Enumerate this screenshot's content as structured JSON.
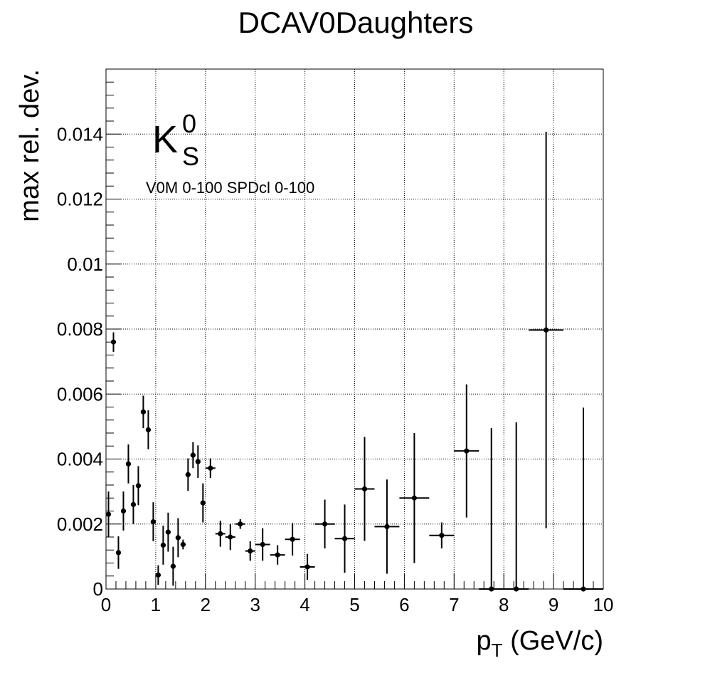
{
  "chart_data": {
    "type": "scatter",
    "title": "DCAV0Daughters",
    "xlabel_main": "p",
    "xlabel_sub": "T",
    "xlabel_unit": " (GeV/c)",
    "ylabel": "max rel. dev.",
    "particle_main": "K",
    "particle_sup": "0",
    "particle_sub": "S",
    "annotation": "V0M 0-100 SPDcl 0-100",
    "xlim": [
      0,
      10
    ],
    "ylim": [
      0,
      0.016
    ],
    "x_ticks": [
      0,
      1,
      2,
      3,
      4,
      5,
      6,
      7,
      8,
      9,
      10
    ],
    "x_tick_labels": [
      "0",
      "1",
      "2",
      "3",
      "4",
      "5",
      "6",
      "7",
      "8",
      "9",
      "10"
    ],
    "y_ticks": [
      0,
      0.002,
      0.004,
      0.006,
      0.008,
      0.01,
      0.012,
      0.014
    ],
    "y_tick_labels": [
      "0",
      "0.002",
      "0.004",
      "0.006",
      "0.008",
      "0.01",
      "0.012",
      "0.014"
    ],
    "grid": true,
    "points": [
      {
        "x": 0.05,
        "y": 0.0023,
        "xerr": 0.05,
        "yerr": 0.0007
      },
      {
        "x": 0.15,
        "y": 0.0076,
        "xerr": 0.05,
        "yerr": 0.0003
      },
      {
        "x": 0.25,
        "y": 0.00112,
        "xerr": 0.05,
        "yerr": 0.0005
      },
      {
        "x": 0.35,
        "y": 0.0024,
        "xerr": 0.05,
        "yerr": 0.0006
      },
      {
        "x": 0.45,
        "y": 0.00385,
        "xerr": 0.05,
        "yerr": 0.0006
      },
      {
        "x": 0.55,
        "y": 0.0026,
        "xerr": 0.05,
        "yerr": 0.0006
      },
      {
        "x": 0.65,
        "y": 0.00318,
        "xerr": 0.05,
        "yerr": 0.0006
      },
      {
        "x": 0.75,
        "y": 0.00545,
        "xerr": 0.05,
        "yerr": 0.0005
      },
      {
        "x": 0.85,
        "y": 0.0049,
        "xerr": 0.05,
        "yerr": 0.0006
      },
      {
        "x": 0.95,
        "y": 0.00207,
        "xerr": 0.05,
        "yerr": 0.0006
      },
      {
        "x": 1.05,
        "y": 0.00043,
        "xerr": 0.05,
        "yerr": 0.0003
      },
      {
        "x": 1.15,
        "y": 0.00135,
        "xerr": 0.05,
        "yerr": 0.0006
      },
      {
        "x": 1.25,
        "y": 0.00175,
        "xerr": 0.05,
        "yerr": 0.0006
      },
      {
        "x": 1.35,
        "y": 0.0007,
        "xerr": 0.05,
        "yerr": 0.0006
      },
      {
        "x": 1.45,
        "y": 0.00158,
        "xerr": 0.05,
        "yerr": 0.0006
      },
      {
        "x": 1.55,
        "y": 0.00137,
        "xerr": 0.05,
        "yerr": 0.00015
      },
      {
        "x": 1.65,
        "y": 0.00352,
        "xerr": 0.05,
        "yerr": 0.0005
      },
      {
        "x": 1.75,
        "y": 0.00412,
        "xerr": 0.05,
        "yerr": 0.0004
      },
      {
        "x": 1.85,
        "y": 0.00392,
        "xerr": 0.05,
        "yerr": 0.0005
      },
      {
        "x": 1.95,
        "y": 0.00265,
        "xerr": 0.05,
        "yerr": 0.0006
      },
      {
        "x": 2.1,
        "y": 0.00372,
        "xerr": 0.1,
        "yerr": 0.0003
      },
      {
        "x": 2.3,
        "y": 0.0017,
        "xerr": 0.1,
        "yerr": 0.0004
      },
      {
        "x": 2.5,
        "y": 0.0016,
        "xerr": 0.1,
        "yerr": 0.0004
      },
      {
        "x": 2.7,
        "y": 0.002,
        "xerr": 0.1,
        "yerr": 0.00015
      },
      {
        "x": 2.9,
        "y": 0.00117,
        "xerr": 0.1,
        "yerr": 0.0003
      },
      {
        "x": 3.15,
        "y": 0.00137,
        "xerr": 0.15,
        "yerr": 0.0005
      },
      {
        "x": 3.45,
        "y": 0.00105,
        "xerr": 0.15,
        "yerr": 0.0003
      },
      {
        "x": 3.75,
        "y": 0.00153,
        "xerr": 0.15,
        "yerr": 0.0005
      },
      {
        "x": 4.05,
        "y": 0.00068,
        "xerr": 0.15,
        "yerr": 0.0004
      },
      {
        "x": 4.4,
        "y": 0.002,
        "xerr": 0.2,
        "yerr": 0.00075
      },
      {
        "x": 4.8,
        "y": 0.00155,
        "xerr": 0.2,
        "yerr": 0.00105
      },
      {
        "x": 5.2,
        "y": 0.00308,
        "xerr": 0.2,
        "yerr": 0.0016
      },
      {
        "x": 5.65,
        "y": 0.00192,
        "xerr": 0.25,
        "yerr": 0.00145
      },
      {
        "x": 6.2,
        "y": 0.0028,
        "xerr": 0.3,
        "yerr": 0.002
      },
      {
        "x": 6.75,
        "y": 0.00165,
        "xerr": 0.25,
        "yerr": 0.0004
      },
      {
        "x": 7.25,
        "y": 0.00425,
        "xerr": 0.25,
        "yerr": 0.00205
      },
      {
        "x": 7.75,
        "y": 0.0,
        "xerr": 0.25,
        "yerr": 0.00495
      },
      {
        "x": 8.25,
        "y": 0.0,
        "xerr": 0.25,
        "yerr": 0.00513
      },
      {
        "x": 8.85,
        "y": 0.00797,
        "xerr": 0.35,
        "yerr": 0.0061
      },
      {
        "x": 9.6,
        "y": 0.0,
        "xerr": 0.4,
        "yerr": 0.00558
      }
    ]
  }
}
